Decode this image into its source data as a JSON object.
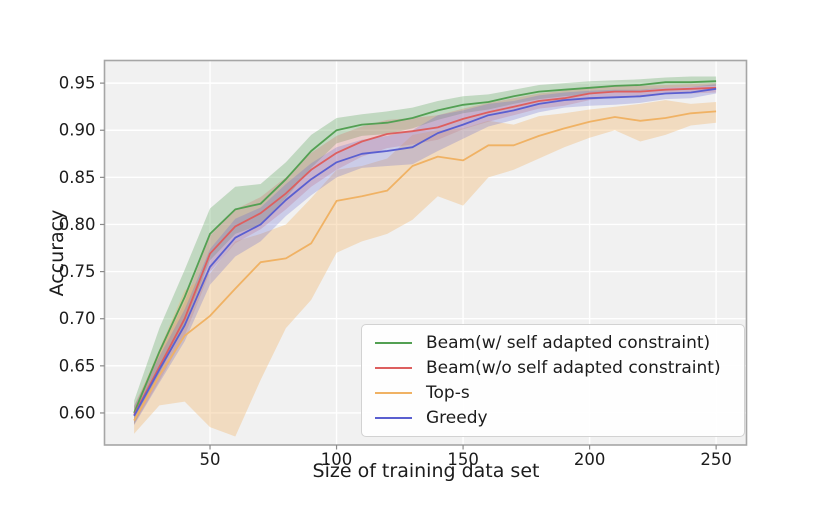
{
  "figure": {
    "background": "#ffffff",
    "plot_background": "#f1f1f1",
    "grid_color": "#ffffff",
    "frame_color": "#a6a6a6",
    "tick_color": "#8a8a8a",
    "text_color": "#1c1c1c"
  },
  "chart_data": {
    "type": "line",
    "title": "",
    "xlabel": "Size of training data set",
    "ylabel": "Accuracy",
    "grid": true,
    "legend_position": "lower right",
    "x_ticks": [
      50,
      100,
      150,
      200,
      250
    ],
    "y_ticks": [
      0.6,
      0.65,
      0.7,
      0.75,
      0.8,
      0.85,
      0.9,
      0.95
    ],
    "xlim": [
      8.3,
      262
    ],
    "ylim": [
      0.566,
      0.974
    ],
    "x": [
      20,
      30,
      40,
      50,
      60,
      70,
      80,
      90,
      100,
      110,
      120,
      130,
      140,
      150,
      160,
      170,
      180,
      190,
      200,
      210,
      220,
      230,
      240,
      250
    ],
    "series": [
      {
        "name": "Beam(w/ self adapted constraint)",
        "color": "#53a053",
        "band_color": "rgba(83,160,83,0.30)",
        "values": [
          0.6,
          0.665,
          0.723,
          0.79,
          0.816,
          0.822,
          0.848,
          0.878,
          0.9,
          0.906,
          0.908,
          0.913,
          0.921,
          0.927,
          0.93,
          0.936,
          0.941,
          0.943,
          0.945,
          0.947,
          0.948,
          0.951,
          0.951,
          0.952
        ],
        "band_lower": [
          0.588,
          0.642,
          0.695,
          0.762,
          0.79,
          0.8,
          0.828,
          0.86,
          0.886,
          0.894,
          0.896,
          0.902,
          0.911,
          0.918,
          0.922,
          0.928,
          0.933,
          0.936,
          0.938,
          0.941,
          0.942,
          0.945,
          0.946,
          0.947
        ],
        "band_upper": [
          0.613,
          0.69,
          0.752,
          0.817,
          0.84,
          0.843,
          0.866,
          0.895,
          0.913,
          0.917,
          0.92,
          0.924,
          0.931,
          0.936,
          0.938,
          0.943,
          0.948,
          0.95,
          0.952,
          0.953,
          0.954,
          0.956,
          0.957,
          0.957
        ]
      },
      {
        "name": "Beam(w/o self adapted constraint)",
        "color": "#dd5f5f",
        "band_color": "rgba(221,95,95,0.25)",
        "values": [
          0.598,
          0.649,
          0.7,
          0.769,
          0.798,
          0.812,
          0.833,
          0.858,
          0.876,
          0.888,
          0.896,
          0.899,
          0.903,
          0.912,
          0.919,
          0.925,
          0.931,
          0.934,
          0.939,
          0.941,
          0.941,
          0.943,
          0.944,
          0.945
        ],
        "band_lower": [
          0.588,
          0.634,
          0.682,
          0.75,
          0.78,
          0.795,
          0.816,
          0.84,
          0.858,
          0.872,
          0.881,
          0.885,
          0.89,
          0.901,
          0.909,
          0.916,
          0.923,
          0.926,
          0.932,
          0.935,
          0.935,
          0.938,
          0.939,
          0.94
        ],
        "band_upper": [
          0.608,
          0.664,
          0.718,
          0.788,
          0.816,
          0.829,
          0.85,
          0.876,
          0.894,
          0.904,
          0.911,
          0.913,
          0.916,
          0.923,
          0.929,
          0.934,
          0.939,
          0.942,
          0.946,
          0.947,
          0.947,
          0.948,
          0.949,
          0.95
        ]
      },
      {
        "name": "Top-s",
        "color": "#f0b264",
        "band_color": "rgba(240,178,100,0.35)",
        "values": [
          0.592,
          0.64,
          0.682,
          0.703,
          0.732,
          0.76,
          0.764,
          0.78,
          0.825,
          0.83,
          0.836,
          0.862,
          0.872,
          0.868,
          0.884,
          0.884,
          0.894,
          0.902,
          0.909,
          0.914,
          0.91,
          0.913,
          0.918,
          0.92
        ],
        "band_lower": [
          0.578,
          0.608,
          0.612,
          0.585,
          0.575,
          0.635,
          0.69,
          0.72,
          0.77,
          0.782,
          0.79,
          0.805,
          0.83,
          0.82,
          0.85,
          0.858,
          0.87,
          0.882,
          0.892,
          0.9,
          0.888,
          0.895,
          0.905,
          0.908
        ],
        "band_upper": [
          0.605,
          0.668,
          0.73,
          0.748,
          0.782,
          0.79,
          0.8,
          0.828,
          0.858,
          0.862,
          0.87,
          0.895,
          0.9,
          0.902,
          0.91,
          0.906,
          0.915,
          0.918,
          0.922,
          0.925,
          0.928,
          0.932,
          0.928,
          0.93
        ]
      },
      {
        "name": "Greedy",
        "color": "#5a5fd0",
        "band_color": "rgba(90,95,208,0.25)",
        "values": [
          0.597,
          0.646,
          0.693,
          0.755,
          0.786,
          0.8,
          0.826,
          0.848,
          0.866,
          0.875,
          0.878,
          0.882,
          0.897,
          0.906,
          0.916,
          0.921,
          0.928,
          0.932,
          0.934,
          0.935,
          0.936,
          0.939,
          0.94,
          0.944
        ],
        "band_lower": [
          0.587,
          0.632,
          0.676,
          0.736,
          0.766,
          0.782,
          0.809,
          0.831,
          0.85,
          0.86,
          0.862,
          0.864,
          0.878,
          0.891,
          0.904,
          0.911,
          0.919,
          0.924,
          0.926,
          0.927,
          0.929,
          0.933,
          0.934,
          0.939
        ],
        "band_upper": [
          0.607,
          0.66,
          0.71,
          0.774,
          0.806,
          0.818,
          0.843,
          0.865,
          0.882,
          0.89,
          0.894,
          0.9,
          0.916,
          0.921,
          0.928,
          0.931,
          0.937,
          0.94,
          0.942,
          0.943,
          0.943,
          0.945,
          0.946,
          0.949
        ]
      }
    ]
  }
}
